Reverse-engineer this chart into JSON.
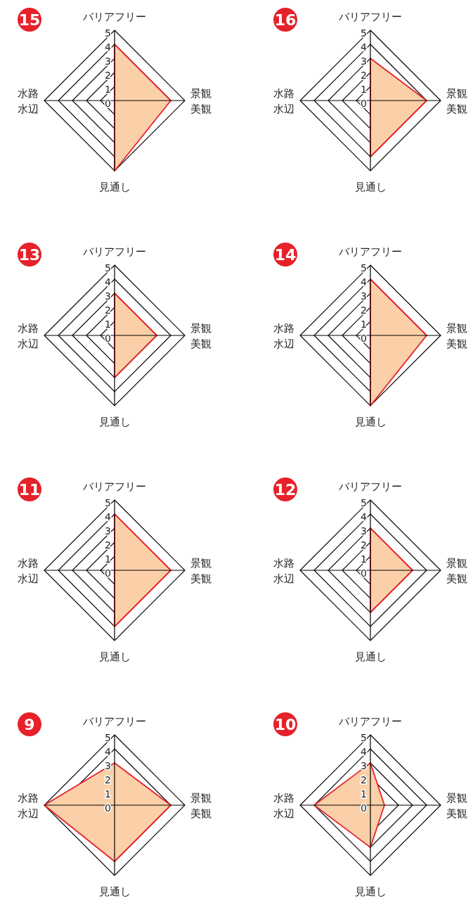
{
  "chart_data": [
    {
      "type": "radar",
      "title": "15",
      "categories": [
        "バリアフリー",
        "景観美観",
        "見通し",
        "水路水辺"
      ],
      "ylim": [
        0,
        5
      ],
      "yticks": [
        0,
        1,
        2,
        3,
        4,
        5
      ],
      "grid": true,
      "series": [
        {
          "color": "#e6212a",
          "values": [
            4,
            4,
            5,
            0
          ]
        }
      ]
    },
    {
      "type": "radar",
      "title": "16",
      "categories": [
        "バリアフリー",
        "景観美観",
        "見通し",
        "水路水辺"
      ],
      "ylim": [
        0,
        5
      ],
      "yticks": [
        0,
        1,
        2,
        3,
        4,
        5
      ],
      "grid": true,
      "series": [
        {
          "color": "#e6212a",
          "values": [
            3,
            4,
            4,
            0
          ]
        }
      ]
    },
    {
      "type": "radar",
      "title": "13",
      "categories": [
        "バリアフリー",
        "景観美観",
        "見通し",
        "水路水辺"
      ],
      "ylim": [
        0,
        5
      ],
      "yticks": [
        0,
        1,
        2,
        3,
        4,
        5
      ],
      "grid": true,
      "series": [
        {
          "color": "#e6212a",
          "values": [
            3,
            3,
            3,
            0
          ]
        }
      ]
    },
    {
      "type": "radar",
      "title": "14",
      "categories": [
        "バリアフリー",
        "景観美観",
        "見通し",
        "水路水辺"
      ],
      "ylim": [
        0,
        5
      ],
      "yticks": [
        0,
        1,
        2,
        3,
        4,
        5
      ],
      "grid": true,
      "series": [
        {
          "color": "#e6212a",
          "values": [
            4,
            4,
            5,
            0
          ]
        }
      ]
    },
    {
      "type": "radar",
      "title": "11",
      "categories": [
        "バリアフリー",
        "景観美観",
        "見通し",
        "水路水辺"
      ],
      "ylim": [
        0,
        5
      ],
      "yticks": [
        0,
        1,
        2,
        3,
        4,
        5
      ],
      "grid": true,
      "series": [
        {
          "color": "#e6212a",
          "values": [
            4,
            4,
            4,
            0
          ]
        }
      ]
    },
    {
      "type": "radar",
      "title": "12",
      "categories": [
        "バリアフリー",
        "景観美観",
        "見通し",
        "水路水辺"
      ],
      "ylim": [
        0,
        5
      ],
      "yticks": [
        0,
        1,
        2,
        3,
        4,
        5
      ],
      "grid": true,
      "series": [
        {
          "color": "#e6212a",
          "values": [
            3,
            3,
            3,
            0
          ]
        }
      ]
    },
    {
      "type": "radar",
      "title": "9",
      "categories": [
        "バリアフリー",
        "景観美観",
        "見通し",
        "水路水辺"
      ],
      "ylim": [
        0,
        5
      ],
      "yticks": [
        0,
        1,
        2,
        3,
        4,
        5
      ],
      "grid": true,
      "series": [
        {
          "color": "#e6212a",
          "values": [
            3,
            4,
            4,
            5
          ]
        }
      ]
    },
    {
      "type": "radar",
      "title": "10",
      "categories": [
        "バリアフリー",
        "景観美観",
        "見通し",
        "水路水辺"
      ],
      "ylim": [
        0,
        5
      ],
      "yticks": [
        0,
        1,
        2,
        3,
        4,
        5
      ],
      "grid": true,
      "series": [
        {
          "color": "#e6212a",
          "values": [
            3,
            1,
            3,
            4
          ]
        }
      ]
    }
  ]
}
